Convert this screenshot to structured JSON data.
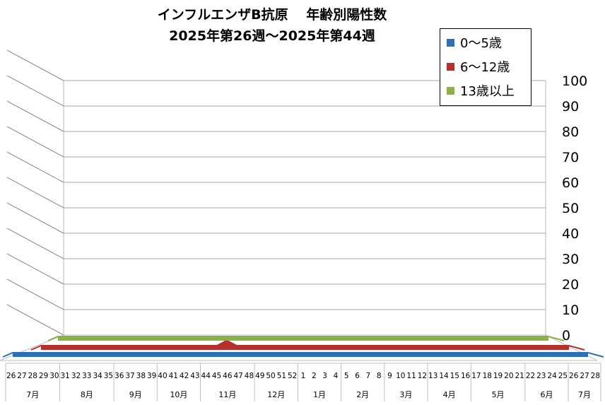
{
  "chart_data": {
    "type": "line",
    "title": "インフルエンザB抗原　 年齢別陽性数",
    "subtitle": "2025年第26週～2025年第44週",
    "ylim": [
      0,
      100
    ],
    "y_ticks": [
      "0",
      "10",
      "20",
      "30",
      "40",
      "50",
      "60",
      "70",
      "80",
      "90",
      "100"
    ],
    "grid": true,
    "legend_position": "top-right",
    "x": [
      "26",
      "27",
      "28",
      "29",
      "30",
      "31",
      "32",
      "33",
      "34",
      "35",
      "36",
      "37",
      "38",
      "39",
      "40",
      "41",
      "42",
      "43",
      "44",
      "45",
      "46",
      "47",
      "48",
      "49",
      "50",
      "51",
      "52",
      "1",
      "2",
      "3",
      "4",
      "5",
      "6",
      "7",
      "8",
      "9",
      "10",
      "11",
      "12",
      "13",
      "14",
      "15",
      "16",
      "17",
      "18",
      "19",
      "20",
      "21",
      "22",
      "23",
      "24",
      "25",
      "26",
      "27",
      "28"
    ],
    "month_groups": [
      {
        "label": "7月",
        "count": 5
      },
      {
        "label": "8月",
        "count": 5
      },
      {
        "label": "9月",
        "count": 4
      },
      {
        "label": "10月",
        "count": 4
      },
      {
        "label": "11月",
        "count": 5
      },
      {
        "label": "12月",
        "count": 4
      },
      {
        "label": "1月",
        "count": 4
      },
      {
        "label": "2月",
        "count": 4
      },
      {
        "label": "3月",
        "count": 4
      },
      {
        "label": "4月",
        "count": 4
      },
      {
        "label": "5月",
        "count": 5
      },
      {
        "label": "6月",
        "count": 4
      },
      {
        "label": "7月",
        "count": 3
      }
    ],
    "series": [
      {
        "name": "0～5歳",
        "color": "#2E6EB5",
        "values": [
          0,
          0,
          0,
          0,
          0,
          0,
          0,
          0,
          0,
          0,
          0,
          0,
          0,
          0,
          0,
          0,
          0,
          0,
          0,
          0,
          0,
          0,
          0,
          0,
          0,
          0,
          0,
          0,
          0,
          0,
          0,
          0,
          0,
          0,
          0,
          0,
          0,
          0,
          0,
          0,
          0,
          0,
          0,
          0,
          0,
          0,
          0,
          0,
          0,
          0,
          0,
          0,
          0,
          0,
          0
        ]
      },
      {
        "name": "6～12歳",
        "color": "#B5302C",
        "values": [
          0,
          0,
          0,
          0,
          0,
          0,
          0,
          0,
          0,
          0,
          0,
          0,
          0,
          0,
          0,
          0,
          0,
          0,
          0,
          1,
          0,
          0,
          0,
          0,
          0,
          0,
          0,
          0,
          0,
          0,
          0,
          0,
          0,
          0,
          0,
          0,
          0,
          0,
          0,
          0,
          0,
          0,
          0,
          0,
          0,
          0,
          0,
          0,
          0,
          0,
          0,
          0,
          0,
          0,
          0
        ]
      },
      {
        "name": "13歳以上",
        "color": "#8CB145",
        "values": [
          0,
          0,
          0,
          0,
          0,
          0,
          0,
          0,
          0,
          0,
          0,
          0,
          0,
          0,
          0,
          0,
          0,
          0,
          0,
          0,
          0,
          0,
          0,
          0,
          0,
          0,
          0,
          0,
          0,
          0,
          0,
          0,
          0,
          0,
          0,
          0,
          0,
          0,
          0,
          0,
          0,
          0,
          0,
          0,
          0,
          0,
          0,
          0,
          0,
          0,
          0,
          0,
          0,
          0,
          0
        ]
      }
    ]
  }
}
